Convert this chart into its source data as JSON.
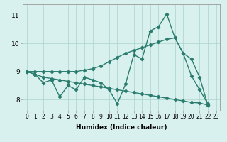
{
  "xlabel": "Humidex (Indice chaleur)",
  "background_color": "#d8f0ee",
  "line_color": "#2a7d6e",
  "marker": "D",
  "markersize": 2.2,
  "linewidth": 1.0,
  "xlim": [
    -0.5,
    23.5
  ],
  "ylim": [
    7.6,
    11.4
  ],
  "yticks": [
    8,
    9,
    10,
    11
  ],
  "xticks": [
    0,
    1,
    2,
    3,
    4,
    5,
    6,
    7,
    8,
    9,
    10,
    11,
    12,
    13,
    14,
    15,
    16,
    17,
    18,
    19,
    20,
    21,
    22,
    23
  ],
  "grid_color": "#aad4cc",
  "series": [
    [
      9.0,
      8.9,
      8.6,
      8.7,
      8.1,
      8.5,
      8.35,
      8.8,
      8.7,
      8.6,
      8.35,
      7.85,
      8.55,
      9.6,
      9.45,
      10.45,
      10.6,
      11.05,
      10.2,
      9.65,
      8.85,
      8.35,
      7.85
    ],
    [
      9.0,
      9.0,
      9.0,
      9.0,
      9.0,
      9.0,
      9.0,
      9.05,
      9.1,
      9.2,
      9.35,
      9.5,
      9.65,
      9.75,
      9.85,
      9.95,
      10.05,
      10.15,
      10.2,
      9.65,
      9.45,
      8.8,
      7.8
    ],
    [
      9.0,
      8.9,
      8.8,
      8.75,
      8.7,
      8.65,
      8.6,
      8.55,
      8.5,
      8.45,
      8.4,
      8.35,
      8.3,
      8.25,
      8.2,
      8.15,
      8.1,
      8.05,
      8.0,
      7.95,
      7.9,
      7.88,
      7.8
    ]
  ]
}
